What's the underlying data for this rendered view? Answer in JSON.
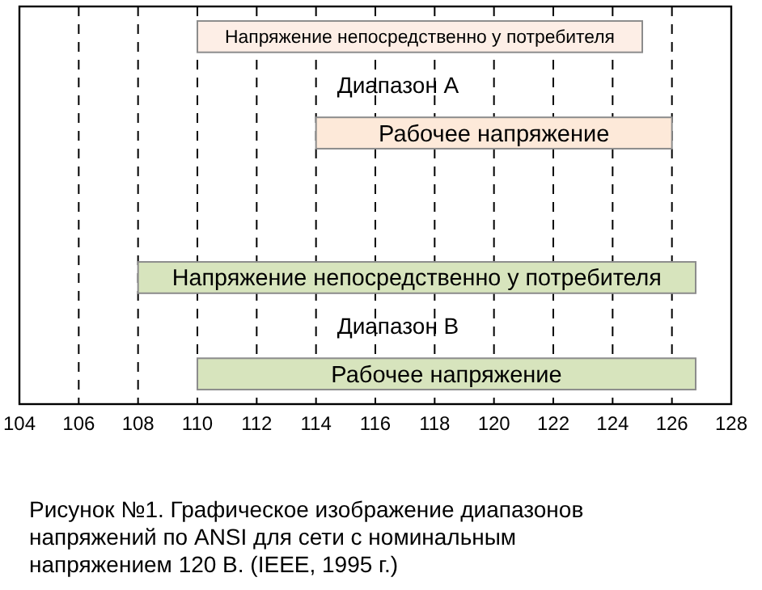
{
  "chart_data": {
    "type": "bar",
    "orientation": "horizontal",
    "title": "Рисунок №1. Графическое изображение диапазонов напряжений по ANSI для сети с номинальным напряжением 120 В. (IEEE, 1995 г.)",
    "categories": [
      "Напряжение непосредственно у потребителя",
      null,
      "Рабочее напряжение",
      null,
      null,
      "Напряжение непосредственно у потребителя",
      null,
      "Рабочее напряжение"
    ],
    "base": [
      110,
      null,
      114,
      null,
      null,
      108,
      null,
      110
    ],
    "values": [
      15,
      null,
      12,
      null,
      null,
      18.8,
      null,
      16.8
    ],
    "colors": [
      "#fdeee6",
      null,
      "#fde9d9",
      null,
      null,
      "#d7e4bd",
      null,
      "#d7e4bd"
    ],
    "annotations": [
      "Диапазон А",
      "Диапазон В"
    ],
    "xlim": [
      104,
      128
    ],
    "xticks": [
      104,
      106,
      108,
      110,
      112,
      114,
      116,
      118,
      120,
      122,
      124,
      126,
      128
    ],
    "grid": "x"
  }
}
